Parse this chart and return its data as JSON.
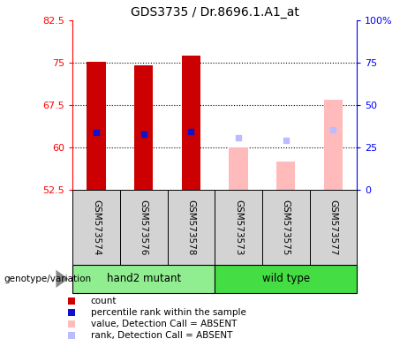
{
  "title": "GDS3735 / Dr.8696.1.A1_at",
  "samples": [
    "GSM573574",
    "GSM573576",
    "GSM573578",
    "GSM573573",
    "GSM573575",
    "GSM573577"
  ],
  "group_labels": [
    "hand2 mutant",
    "wild type"
  ],
  "ylim": [
    52.5,
    82.5
  ],
  "yticks": [
    52.5,
    60.0,
    67.5,
    75.0,
    82.5
  ],
  "ytick_labels": [
    "52.5",
    "60",
    "67.5",
    "75",
    "82.5"
  ],
  "y2ticks_pct": [
    0,
    25,
    50,
    75,
    100
  ],
  "y2ticklabels": [
    "0",
    "25",
    "50",
    "75",
    "100%"
  ],
  "count_values": [
    75.1,
    74.5,
    76.2,
    null,
    null,
    null
  ],
  "rank_values": [
    62.6,
    62.3,
    62.8,
    null,
    null,
    null
  ],
  "absent_value_values": [
    null,
    null,
    null,
    60.0,
    57.5,
    68.5
  ],
  "absent_rank_values": [
    null,
    null,
    null,
    61.8,
    61.3,
    63.2
  ],
  "bar_bottom": 52.5,
  "yrange": 30.0,
  "count_color": "#cc0000",
  "rank_color": "#1111cc",
  "absent_value_color": "#ffbbbb",
  "absent_rank_color": "#bbbbff",
  "bg_color": "#d3d3d3",
  "green_light": "#90ee90",
  "green_bright": "#44dd44",
  "legend_items": [
    {
      "label": "count",
      "color": "#cc0000"
    },
    {
      "label": "percentile rank within the sample",
      "color": "#1111cc"
    },
    {
      "label": "value, Detection Call = ABSENT",
      "color": "#ffbbbb"
    },
    {
      "label": "rank, Detection Call = ABSENT",
      "color": "#bbbbff"
    }
  ]
}
